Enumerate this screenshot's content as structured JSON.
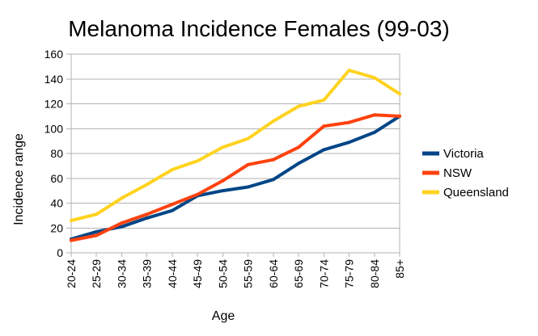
{
  "chart_data": {
    "type": "line",
    "title": "Melanoma Incidence Females (99-03)",
    "xlabel": "Age",
    "ylabel": "Incidence range",
    "ylim": [
      0,
      160
    ],
    "yticks": [
      0,
      20,
      40,
      60,
      80,
      100,
      120,
      140,
      160
    ],
    "grid": true,
    "legend_position": "right",
    "categories": [
      "20-24",
      "25-29",
      "30-34",
      "35-39",
      "40-44",
      "45-49",
      "50-54",
      "55-59",
      "60-64",
      "65-69",
      "70-74",
      "75-79",
      "80-84",
      "85+"
    ],
    "series": [
      {
        "name": "Victoria",
        "color": "#004586",
        "values": [
          11,
          17,
          21,
          28,
          34,
          46,
          50,
          53,
          59,
          72,
          83,
          89,
          97,
          110
        ]
      },
      {
        "name": "NSW",
        "color": "#ff420e",
        "values": [
          10,
          14,
          24,
          31,
          39,
          47,
          58,
          71,
          75,
          85,
          102,
          105,
          111,
          110
        ]
      },
      {
        "name": "Queensland",
        "color": "#ffd320",
        "values": [
          26,
          31,
          44,
          55,
          67,
          74,
          85,
          92,
          106,
          118,
          123,
          147,
          141,
          128
        ]
      }
    ]
  }
}
